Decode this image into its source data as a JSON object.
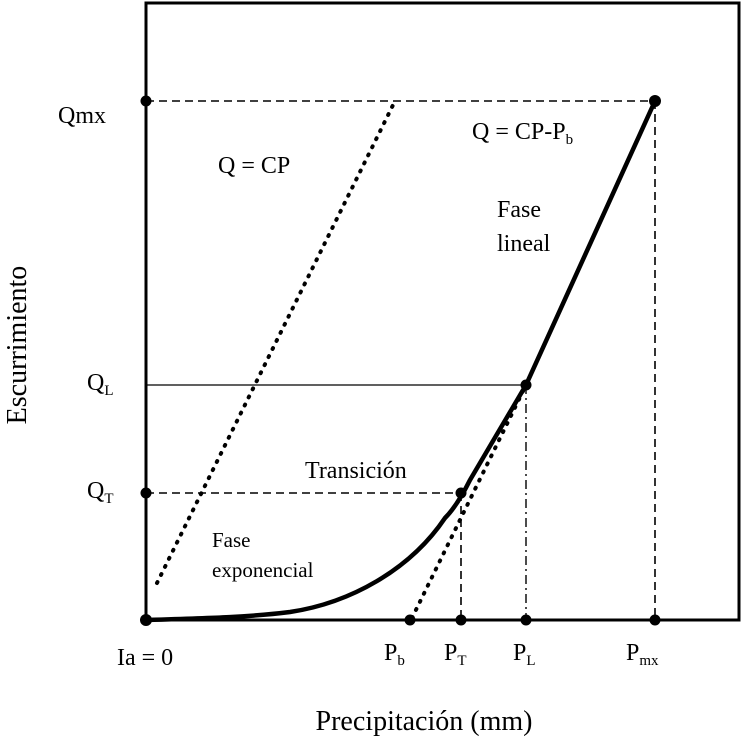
{
  "axes": {
    "y_title": "Escurrimiento",
    "x_title": "Precipitación (mm)"
  },
  "y_ticks": {
    "qmx": "Qmx",
    "ql_main": "Q",
    "ql_sub": "L",
    "qt_main": "Q",
    "qt_sub": "T"
  },
  "x_ticks": {
    "ia": "Ia = 0",
    "pb_main": "P",
    "pb_sub": "b",
    "pt_main": "P",
    "pt_sub": "T",
    "pl_main": "P",
    "pl_sub": "L",
    "pmx_main": "P",
    "pmx_sub": "mx"
  },
  "annotations": {
    "eq_cp": "Q = CP",
    "eq_cpb_main": "Q = CP-P",
    "eq_cpb_sub": "b",
    "fase_lineal_1": "Fase",
    "fase_lineal_2": "lineal",
    "transicion": "Transición",
    "fase_exp_1": "Fase",
    "fase_exp_2": "exponencial"
  },
  "colors": {
    "ink": "#000000",
    "background": "#ffffff"
  }
}
